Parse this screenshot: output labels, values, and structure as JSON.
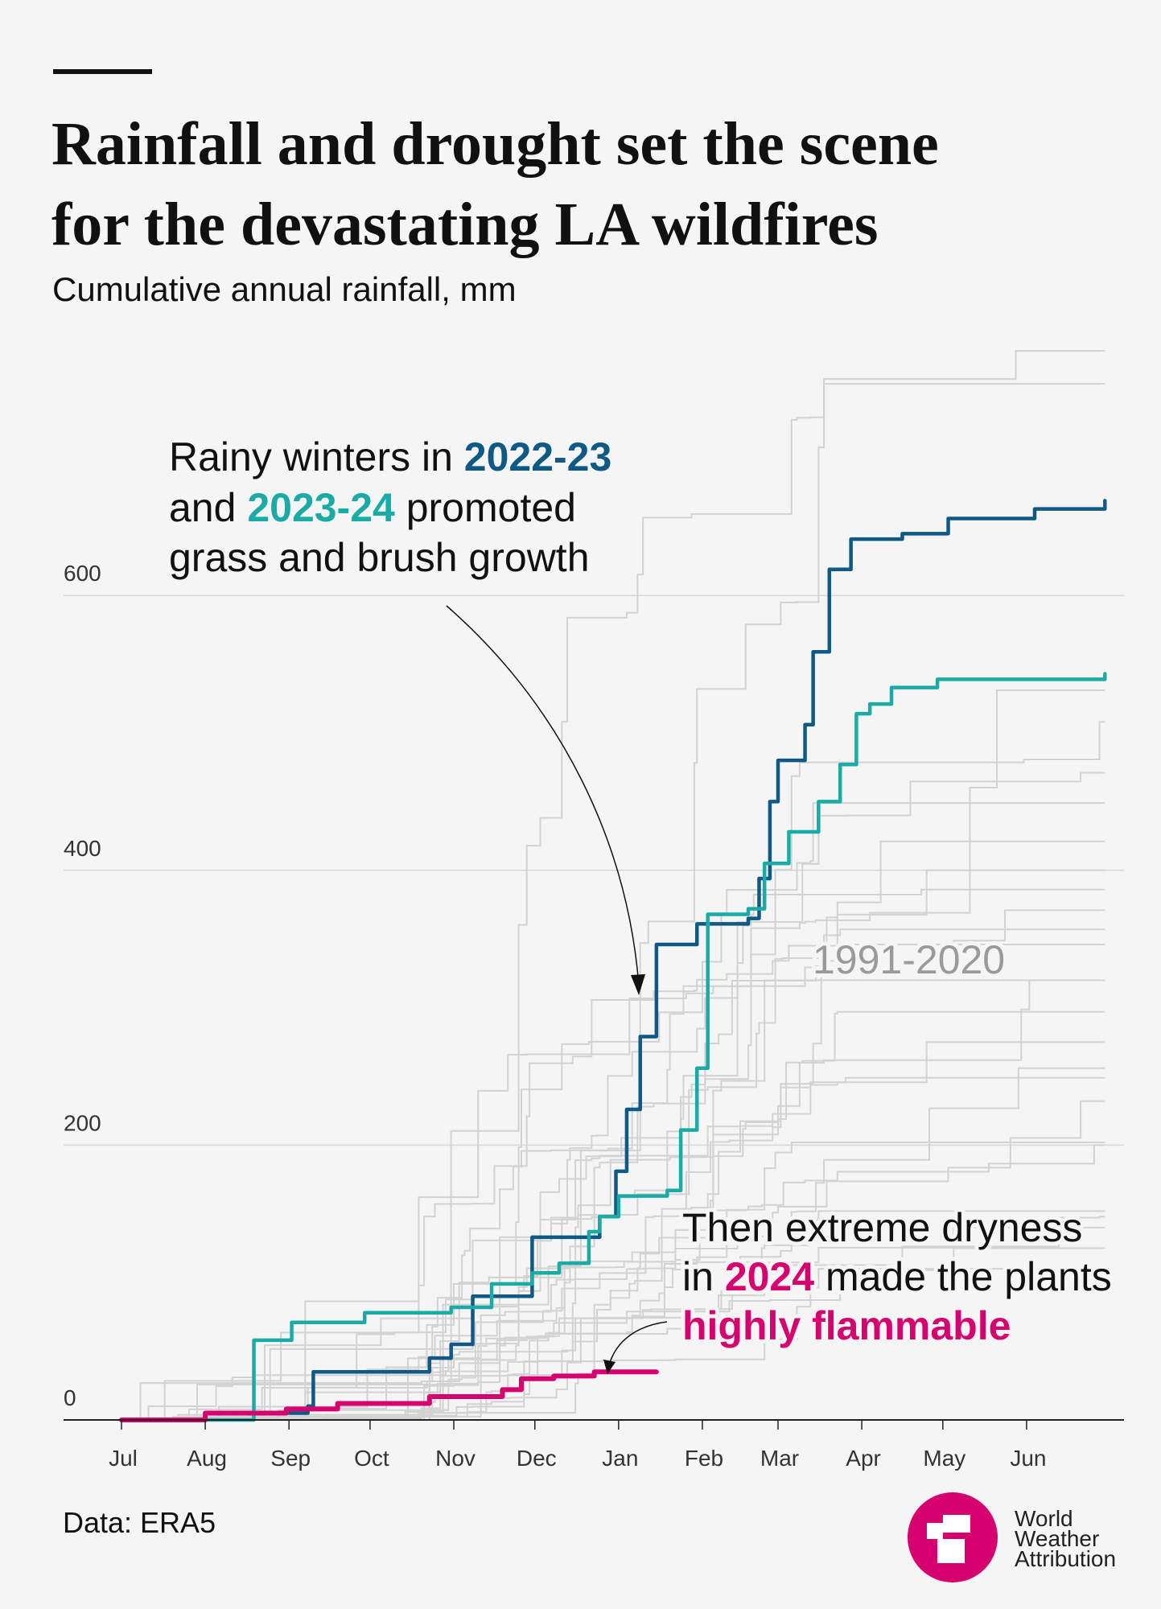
{
  "header": {
    "title_line1": "Rainfall and drought set the scene",
    "title_line2": "for the devastating LA wildfires",
    "subtitle": "Cumulative annual rainfall, mm"
  },
  "chart_data": {
    "type": "line",
    "step": true,
    "ylabel": "",
    "xlabel": "",
    "ylim": [
      0,
      780
    ],
    "yticks": [
      "0",
      "200",
      "400",
      "600"
    ],
    "grid": "horizontal",
    "xticks": [
      "Jul",
      "Aug",
      "Sep",
      "Oct",
      "Nov",
      "Dec",
      "Jan",
      "Feb",
      "Mar",
      "Apr",
      "May",
      "Jun"
    ],
    "series": [
      {
        "name": "2022-23",
        "color": "#0e5a85",
        "points": [
          [
            "07-01",
            0
          ],
          [
            "08-01",
            5
          ],
          [
            "09-08",
            10
          ],
          [
            "09-10",
            35
          ],
          [
            "10-23",
            45
          ],
          [
            "10-31",
            55
          ],
          [
            "11-08",
            90
          ],
          [
            "11-30",
            133
          ],
          [
            "12-25",
            148
          ],
          [
            "12-31",
            181
          ],
          [
            "01-04",
            226
          ],
          [
            "01-09",
            279
          ],
          [
            "01-15",
            346
          ],
          [
            "01-30",
            361
          ],
          [
            "02-18",
            365
          ],
          [
            "02-22",
            394
          ],
          [
            "02-26",
            450
          ],
          [
            "03-01",
            480
          ],
          [
            "03-11",
            506
          ],
          [
            "03-14",
            559
          ],
          [
            "03-20",
            619
          ],
          [
            "03-28",
            641
          ],
          [
            "04-16",
            645
          ],
          [
            "05-03",
            656
          ],
          [
            "06-04",
            663
          ],
          [
            "06-30",
            669
          ]
        ]
      },
      {
        "name": "2023-24",
        "color": "#1aaba6",
        "points": [
          [
            "07-01",
            0
          ],
          [
            "08-19",
            58
          ],
          [
            "09-02",
            71
          ],
          [
            "09-29",
            78
          ],
          [
            "10-31",
            82
          ],
          [
            "11-15",
            99
          ],
          [
            "11-30",
            107
          ],
          [
            "12-10",
            114
          ],
          [
            "12-21",
            137
          ],
          [
            "12-25",
            148
          ],
          [
            "01-01",
            163
          ],
          [
            "01-19",
            167
          ],
          [
            "01-24",
            211
          ],
          [
            "01-30",
            256
          ],
          [
            "02-03",
            368
          ],
          [
            "02-18",
            372
          ],
          [
            "02-24",
            405
          ],
          [
            "03-05",
            428
          ],
          [
            "03-16",
            450
          ],
          [
            "03-24",
            477
          ],
          [
            "03-30",
            514
          ],
          [
            "04-04",
            521
          ],
          [
            "04-12",
            533
          ],
          [
            "04-29",
            539
          ],
          [
            "06-30",
            543
          ]
        ]
      },
      {
        "name": "2024",
        "color": "#d6006f",
        "points": [
          [
            "07-01",
            0
          ],
          [
            "08-01",
            5
          ],
          [
            "08-31",
            8
          ],
          [
            "09-19",
            12
          ],
          [
            "10-23",
            17
          ],
          [
            "11-19",
            22
          ],
          [
            "11-26",
            30
          ],
          [
            "12-08",
            32
          ],
          [
            "12-23",
            35
          ],
          [
            "01-15",
            35
          ]
        ]
      }
    ],
    "reference": {
      "name": "1991-2020",
      "color": "#d2d2d2",
      "season_totals": [
        778,
        754,
        531,
        508,
        471,
        449,
        421,
        400,
        386,
        371,
        357,
        346,
        320,
        320,
        297,
        275,
        256,
        249,
        232,
        202,
        200,
        152,
        148,
        140,
        125,
        110
      ]
    }
  },
  "annotations": {
    "rainy": {
      "l1a": "Rainy winters in ",
      "l1b": "2022-23",
      "l2a": "and ",
      "l2b": "2023-24",
      "l2c": " promoted",
      "l3": "grass and brush growth"
    },
    "period": "1991-2020",
    "dry": {
      "l1": "Then extreme dryness",
      "l2a": "in ",
      "l2b": "2024",
      "l2c": " made the plants",
      "l3": "highly flammable"
    }
  },
  "footer": {
    "source": "Data: ERA5",
    "logo": {
      "line1": "World",
      "line2": "Weather",
      "line3": "Attribution",
      "color": "#d6006f"
    }
  }
}
